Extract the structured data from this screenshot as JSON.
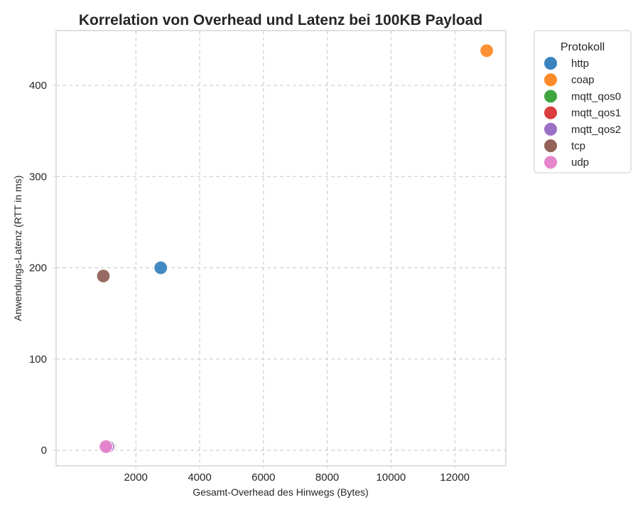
{
  "chart_data": {
    "type": "scatter",
    "title": "Korrelation von Overhead und Latenz bei 100KB Payload",
    "xlabel": "Gesamt-Overhead des Hinwegs (Bytes)",
    "ylabel": "Anwendungs-Latenz (RTT in ms)",
    "xlim": [
      -500,
      13600
    ],
    "ylim": [
      -17,
      460
    ],
    "xticks": [
      2000,
      4000,
      6000,
      8000,
      10000,
      12000
    ],
    "yticks": [
      0,
      100,
      200,
      300,
      400
    ],
    "grid": true,
    "legend": {
      "title": "Protokoll",
      "placement": "outside-top-right"
    },
    "series": [
      {
        "name": "http",
        "color": "#3a84bf",
        "points": [
          {
            "x": 2780,
            "y": 200
          }
        ]
      },
      {
        "name": "coap",
        "color": "#fd8b2a",
        "points": [
          {
            "x": 13000,
            "y": 438
          }
        ]
      },
      {
        "name": "mqtt_qos0",
        "color": "#3ea541",
        "points": [
          {
            "x": 1180,
            "y": 4
          }
        ]
      },
      {
        "name": "mqtt_qos1",
        "color": "#d93d3d",
        "points": [
          {
            "x": 1150,
            "y": 4
          }
        ]
      },
      {
        "name": "mqtt_qos2",
        "color": "#9a70c4",
        "points": [
          {
            "x": 1120,
            "y": 4
          }
        ]
      },
      {
        "name": "tcp",
        "color": "#936258",
        "points": [
          {
            "x": 980,
            "y": 191
          }
        ]
      },
      {
        "name": "udp",
        "color": "#e586cb",
        "points": [
          {
            "x": 1060,
            "y": 4
          }
        ]
      }
    ]
  }
}
